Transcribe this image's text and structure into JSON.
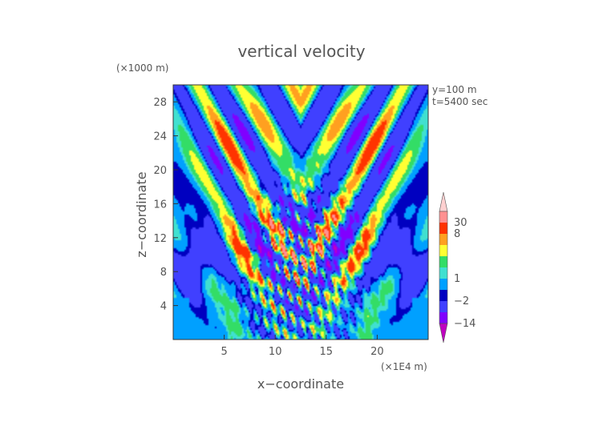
{
  "chart_data": {
    "type": "heatmap",
    "title": "vertical velocity",
    "xlabel": "x−coordinate",
    "ylabel": "z−coordinate",
    "x_unit": "(×1E4 m)",
    "y_unit": "(×1000 m)",
    "annotations": [
      "y=100 m",
      "t=5400 sec"
    ],
    "xlim": [
      0,
      25
    ],
    "ylim": [
      0,
      30
    ],
    "x_ticks": [
      "5",
      "10",
      "15",
      "20"
    ],
    "y_ticks": [
      "4",
      "8",
      "12",
      "16",
      "20",
      "24",
      "28"
    ],
    "colorbar": {
      "ticks": [
        "30",
        "8",
        "1",
        "−2",
        "−14"
      ],
      "levels": [
        -20,
        -14,
        -8,
        -2,
        -1,
        1,
        2,
        4,
        6,
        8,
        12,
        30
      ],
      "colors": [
        "#c000c0",
        "#8000ff",
        "#4040ff",
        "#0000c0",
        "#00a0ff",
        "#40e0d0",
        "#33dd66",
        "#ffff33",
        "#ffa020",
        "#ff3300",
        "#ff9090",
        "#ffd0d0"
      ]
    }
  }
}
